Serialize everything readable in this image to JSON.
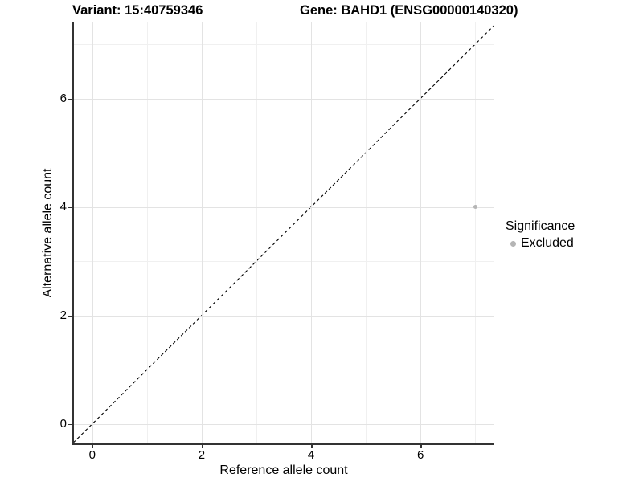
{
  "chart_data": {
    "type": "scatter",
    "title_left": "Variant: 15:40759346",
    "title_right": "Gene: BAHD1 (ENSG00000140320)",
    "xlabel": "Reference allele count",
    "ylabel": "Alternative allele count",
    "xlim": [
      -0.35,
      7.35
    ],
    "ylim": [
      -0.36,
      7.4
    ],
    "x_major_ticks": [
      0,
      2,
      4,
      6
    ],
    "x_minor_ticks": [
      1,
      3,
      5,
      7
    ],
    "y_major_ticks": [
      0,
      2,
      4,
      6
    ],
    "y_minor_ticks": [
      1,
      3,
      5,
      7
    ],
    "grid": true,
    "reference_line": {
      "type": "identity y=x",
      "style": "dashed",
      "color": "#000000"
    },
    "series": [
      {
        "name": "Excluded",
        "color": "#b5b5b5",
        "points": [
          {
            "x": 7,
            "y": 4
          }
        ]
      }
    ],
    "legend": {
      "title": "Significance",
      "position": "right"
    }
  },
  "colors": {
    "background": "#ffffff",
    "axis_line": "#333333",
    "major_grid": "#e3e3e3",
    "minor_grid": "#f0f0f0",
    "text": "#000000",
    "excluded_point": "#b5b5b5"
  }
}
